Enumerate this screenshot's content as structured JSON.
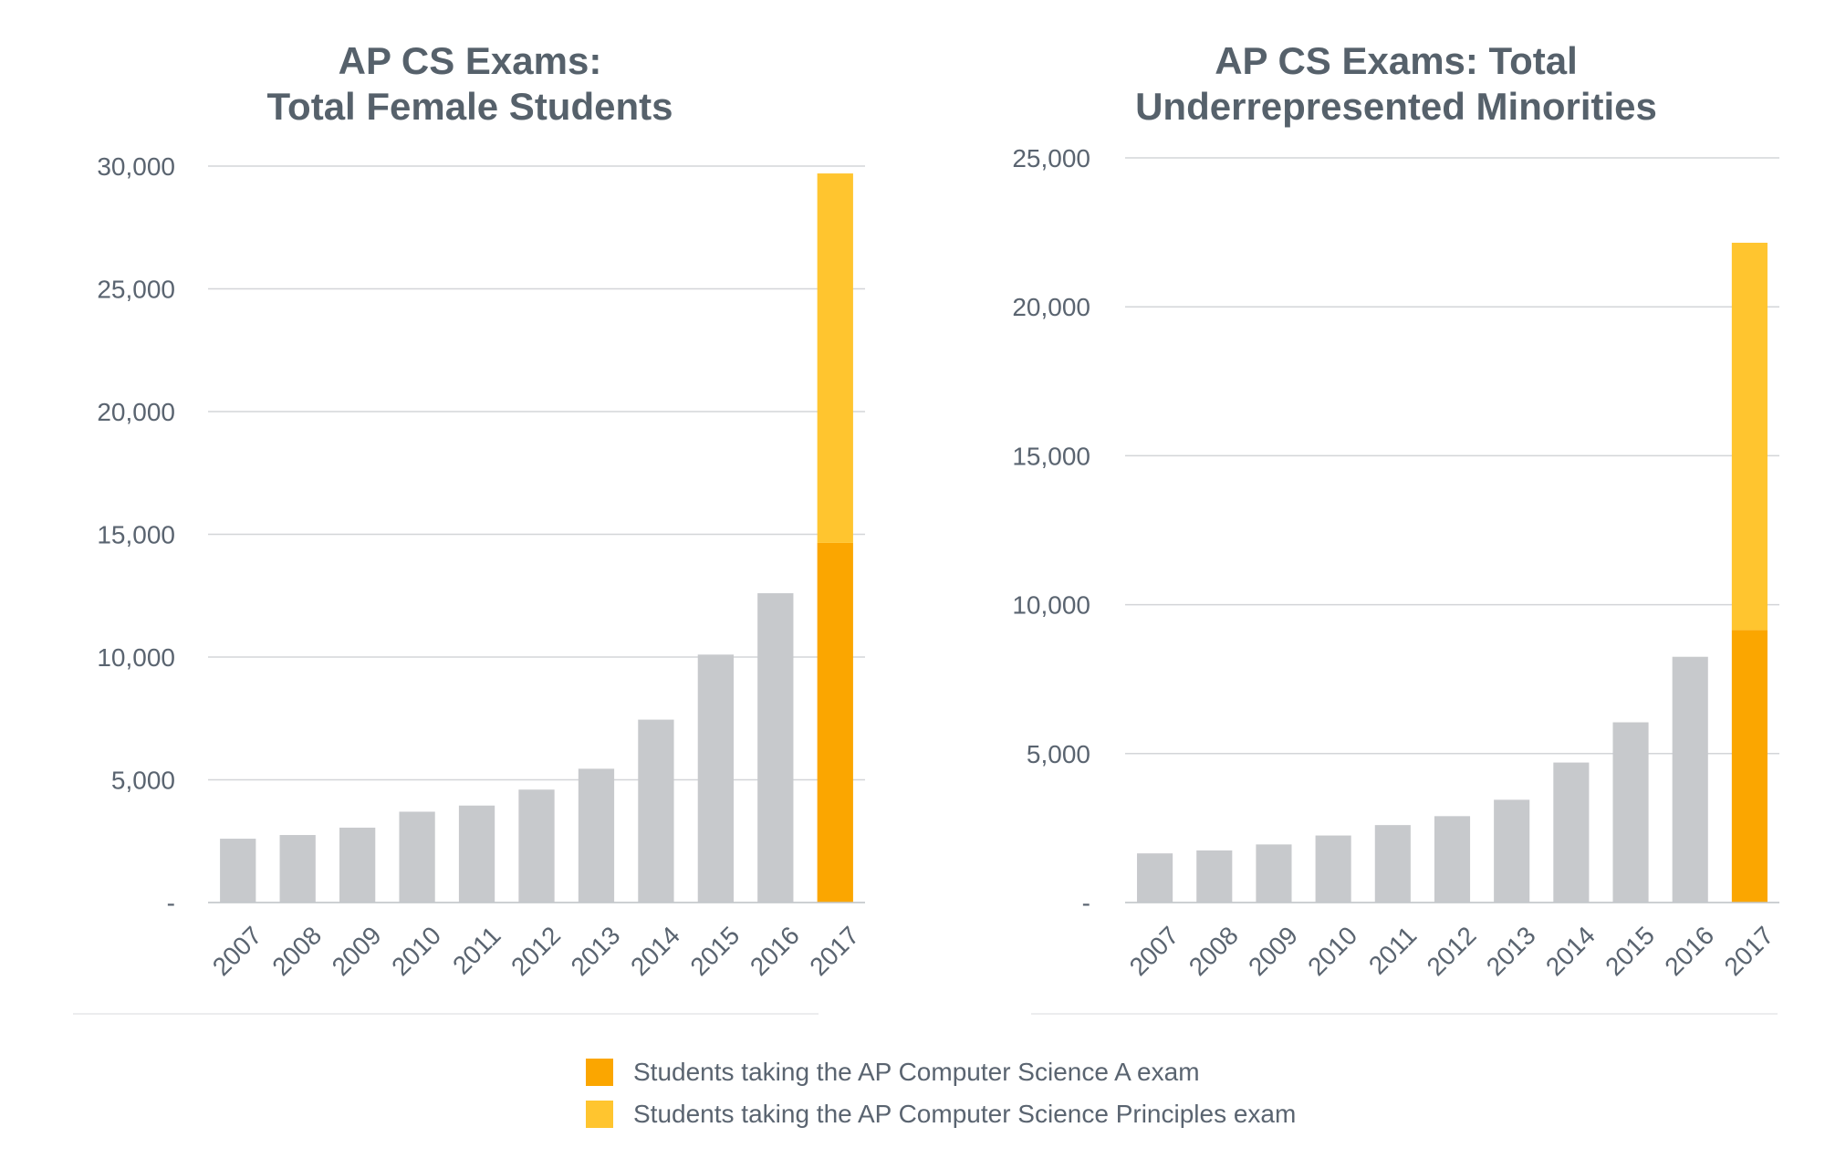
{
  "colors": {
    "gray_bar": "#c7c9cc",
    "csa": "#fba600",
    "csp": "#ffc52f",
    "grid": "#d3d5d8",
    "text": "#5a6470"
  },
  "legend": [
    {
      "label": "Students taking the AP Computer Science A exam",
      "color": "#fba600"
    },
    {
      "label": "Students taking the AP Computer Science Principles exam",
      "color": "#ffc52f"
    }
  ],
  "chart_data": [
    {
      "type": "bar",
      "title_lines": [
        "AP CS Exams:",
        "Total Female Students"
      ],
      "categories": [
        "2007",
        "2008",
        "2009",
        "2010",
        "2011",
        "2012",
        "2013",
        "2014",
        "2015",
        "2016",
        "2017"
      ],
      "values": [
        2600,
        2750,
        3050,
        3700,
        3950,
        4600,
        5450,
        7450,
        10100,
        12600,
        null
      ],
      "stacked_2017": {
        "csa": 14650,
        "csp": 15050
      },
      "y_ticks": [
        "-",
        "5,000",
        "10,000",
        "15,000",
        "20,000",
        "25,000",
        "30,000"
      ],
      "ylim": [
        0,
        30000
      ],
      "grid": true
    },
    {
      "type": "bar",
      "title_lines": [
        "AP CS Exams: Total",
        "Underrepresented Minorities"
      ],
      "categories": [
        "2007",
        "2008",
        "2009",
        "2010",
        "2011",
        "2012",
        "2013",
        "2014",
        "2015",
        "2016",
        "2017"
      ],
      "values": [
        1650,
        1750,
        1950,
        2250,
        2600,
        2900,
        3450,
        4700,
        6050,
        8250,
        null
      ],
      "stacked_2017": {
        "csa": 9150,
        "csp": 13000
      },
      "y_ticks": [
        "-",
        "5,000",
        "10,000",
        "15,000",
        "20,000",
        "25,000"
      ],
      "ylim": [
        0,
        25000
      ],
      "grid": true
    }
  ]
}
